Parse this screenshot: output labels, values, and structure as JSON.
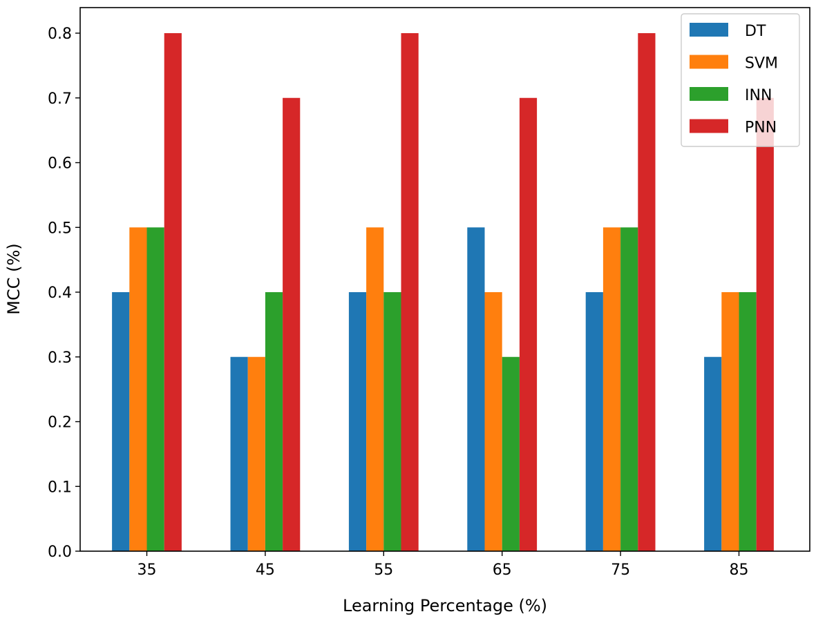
{
  "chart_data": {
    "type": "bar",
    "title": "",
    "xlabel": "Learning Percentage (%)",
    "ylabel": "MCC (%)",
    "categories": [
      "35",
      "45",
      "55",
      "65",
      "75",
      "85"
    ],
    "series": [
      {
        "name": "DT",
        "color": "#1f77b4",
        "values": [
          0.4,
          0.3,
          0.4,
          0.5,
          0.4,
          0.3
        ]
      },
      {
        "name": "SVM",
        "color": "#ff7f0e",
        "values": [
          0.5,
          0.3,
          0.5,
          0.4,
          0.5,
          0.4
        ]
      },
      {
        "name": "INN",
        "color": "#2ca02c",
        "values": [
          0.5,
          0.4,
          0.4,
          0.3,
          0.5,
          0.4
        ]
      },
      {
        "name": "PNN",
        "color": "#d62728",
        "values": [
          0.8,
          0.7,
          0.8,
          0.7,
          0.8,
          0.7
        ]
      }
    ],
    "ylim": [
      0.0,
      0.8
    ],
    "yticks": [
      "0.0",
      "0.1",
      "0.2",
      "0.3",
      "0.4",
      "0.5",
      "0.6",
      "0.7",
      "0.8"
    ],
    "grid": false,
    "legend_position": "top-right"
  }
}
